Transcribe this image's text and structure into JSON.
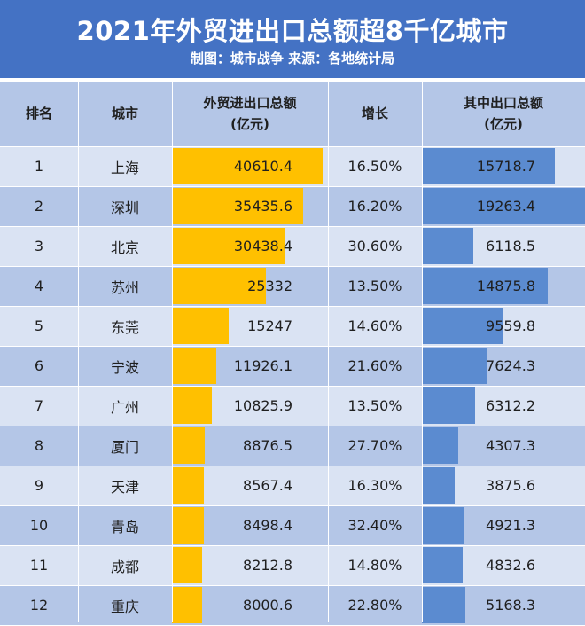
{
  "title": "2021年外贸进出口总额超8千亿城市",
  "subtitle": "制图：城市战争   来源：各地统计局",
  "colors": {
    "title_band": "#4472c4",
    "header": "#b4c6e7",
    "row_odd": "#dae3f3",
    "row_even": "#b4c6e7",
    "total_bar": "#ffc000",
    "export_bar": "#5b8bd0"
  },
  "chart_data": {
    "type": "table",
    "title": "2021年外贸进出口总额超8千亿城市",
    "subtitle": "制图：城市战争   来源：各地统计局",
    "headers": {
      "rank": "排名",
      "city": "城市",
      "total": [
        "外贸进出口总额",
        "(亿元)"
      ],
      "growth": "增长",
      "export": [
        "其中出口总额",
        "(亿元)"
      ]
    },
    "rows": [
      {
        "rank": "1",
        "city": "上海",
        "total": 40610.4,
        "total_text": "40610.4",
        "growth": "16.50%",
        "export": 15718.7,
        "export_text": "15718.7"
      },
      {
        "rank": "2",
        "city": "深圳",
        "total": 35435.6,
        "total_text": "35435.6",
        "growth": "16.20%",
        "export": 19263.4,
        "export_text": "19263.4"
      },
      {
        "rank": "3",
        "city": "北京",
        "total": 30438.4,
        "total_text": "30438.4",
        "growth": "30.60%",
        "export": 6118.5,
        "export_text": "6118.5"
      },
      {
        "rank": "4",
        "city": "苏州",
        "total": 25332,
        "total_text": "25332",
        "growth": "13.50%",
        "export": 14875.8,
        "export_text": "14875.8"
      },
      {
        "rank": "5",
        "city": "东莞",
        "total": 15247,
        "total_text": "15247",
        "growth": "14.60%",
        "export": 9559.8,
        "export_text": "9559.8"
      },
      {
        "rank": "6",
        "city": "宁波",
        "total": 11926.1,
        "total_text": "11926.1",
        "growth": "21.60%",
        "export": 7624.3,
        "export_text": "7624.3"
      },
      {
        "rank": "7",
        "city": "广州",
        "total": 10825.9,
        "total_text": "10825.9",
        "growth": "13.50%",
        "export": 6312.2,
        "export_text": "6312.2"
      },
      {
        "rank": "8",
        "city": "厦门",
        "total": 8876.5,
        "total_text": "8876.5",
        "growth": "27.70%",
        "export": 4307.3,
        "export_text": "4307.3"
      },
      {
        "rank": "9",
        "city": "天津",
        "total": 8567.4,
        "total_text": "8567.4",
        "growth": "16.30%",
        "export": 3875.6,
        "export_text": "3875.6"
      },
      {
        "rank": "10",
        "city": "青岛",
        "total": 8498.4,
        "total_text": "8498.4",
        "growth": "32.40%",
        "export": 4921.3,
        "export_text": "4921.3"
      },
      {
        "rank": "11",
        "city": "成都",
        "total": 8212.8,
        "total_text": "8212.8",
        "growth": "14.80%",
        "export": 4832.6,
        "export_text": "4832.6"
      },
      {
        "rank": "12",
        "city": "重庆",
        "total": 8000.6,
        "total_text": "8000.6",
        "growth": "22.80%",
        "export": 5168.3,
        "export_text": "5168.3"
      }
    ]
  }
}
